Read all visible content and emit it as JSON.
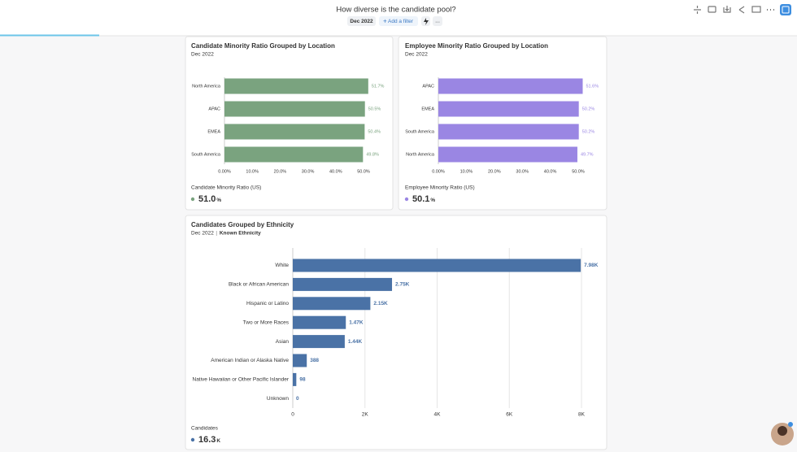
{
  "header": {
    "title": "How diverse is the candidate pool?",
    "date_chip": "Dec 2022",
    "add_filter": "Add a filter",
    "more": "..."
  },
  "chart_data": [
    {
      "type": "hbar",
      "title": "Candidate Minority Ratio Grouped by Location",
      "subtitle": "Dec 2022",
      "categories": [
        "North America",
        "APAC",
        "EMEA",
        "South America"
      ],
      "values": [
        51.7,
        50.5,
        50.4,
        49.8
      ],
      "value_labels": [
        "51.7%",
        "50.5%",
        "50.4%",
        "49.8%"
      ],
      "color": "#7aa37f",
      "xlim": [
        0,
        52
      ],
      "xticks": [
        {
          "value": 0,
          "label": "0.00%"
        },
        {
          "value": 10,
          "label": "10.0%"
        },
        {
          "value": 20,
          "label": "20.0%"
        },
        {
          "value": 30,
          "label": "30.0%"
        },
        {
          "value": 40,
          "label": "40.0%"
        },
        {
          "value": 50,
          "label": "50.0%"
        }
      ],
      "grid": false,
      "metric_label": "Candidate Minority Ratio (US)",
      "metric_value": "51.0",
      "metric_unit": "%"
    },
    {
      "type": "hbar",
      "title": "Employee Minority Ratio Grouped by Location",
      "subtitle": "Dec 2022",
      "categories": [
        "APAC",
        "EMEA",
        "South America",
        "North America"
      ],
      "values": [
        51.6,
        50.2,
        50.2,
        49.7
      ],
      "value_labels": [
        "51.6%",
        "50.2%",
        "50.2%",
        "49.7%"
      ],
      "color": "#9a86e3",
      "xlim": [
        0,
        52
      ],
      "xticks": [
        {
          "value": 0,
          "label": "0.00%"
        },
        {
          "value": 10,
          "label": "10.0%"
        },
        {
          "value": 20,
          "label": "20.0%"
        },
        {
          "value": 30,
          "label": "30.0%"
        },
        {
          "value": 40,
          "label": "40.0%"
        },
        {
          "value": 50,
          "label": "50.0%"
        }
      ],
      "grid": false,
      "metric_label": "Employee Minority Ratio (US)",
      "metric_value": "50.1",
      "metric_unit": "%"
    },
    {
      "type": "hbar",
      "title": "Candidates Grouped by Ethnicity",
      "subtitle": "Dec 2022",
      "filter": "Known Ethnicity",
      "categories": [
        "White",
        "Black or African American",
        "Hispanic or Latino",
        "Two or More Races",
        "Asian",
        "American Indian or Alaska Native",
        "Native Hawaiian or Other Pacific Islander",
        "Unknown"
      ],
      "values": [
        7980,
        2750,
        2150,
        1470,
        1440,
        388,
        98,
        0
      ],
      "value_labels": [
        "7.98K",
        "2.75K",
        "2.15K",
        "1.47K",
        "1.44K",
        "388",
        "98",
        "0"
      ],
      "color": "#4a72a6",
      "xlim": [
        0,
        8000
      ],
      "xticks": [
        0,
        {
          "value": 2000,
          "label": "2K"
        },
        {
          "value": 4000,
          "label": "4K"
        },
        {
          "value": 6000,
          "label": "6K"
        },
        {
          "value": 8000,
          "label": "8K"
        }
      ],
      "grid": true,
      "metric_label": "Candidates",
      "metric_value": "16.3",
      "metric_unit": "K"
    }
  ]
}
